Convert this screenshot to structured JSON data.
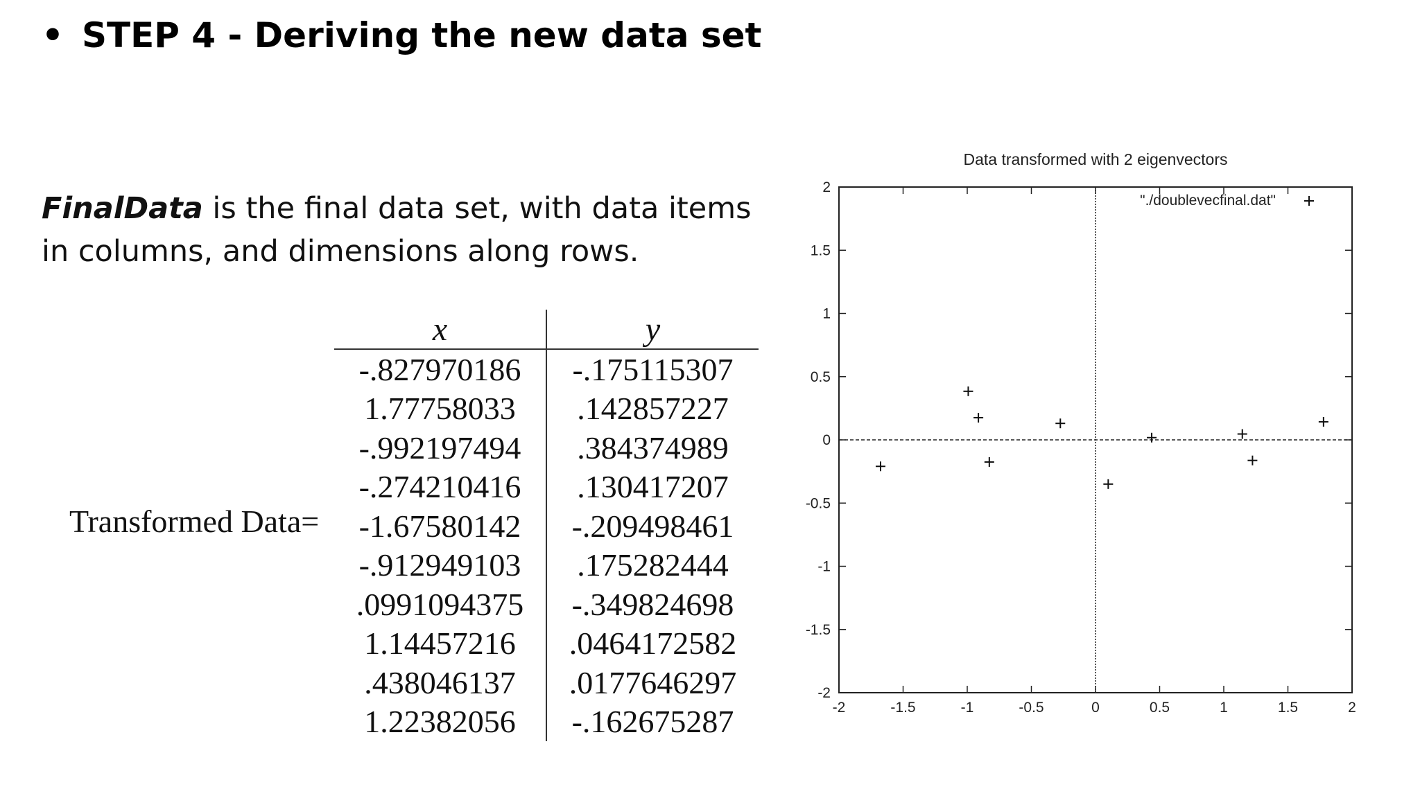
{
  "slide": {
    "bullet": "•",
    "heading": "STEP 4 - Deriving the new data set",
    "paragraph_term": "FinalData",
    "paragraph_rest": " is the final data set, with data items in columns, and dimensions along rows.",
    "table_label": "Transformed Data="
  },
  "table": {
    "columns": [
      "x",
      "y"
    ],
    "rows": [
      [
        "-.827970186",
        "-.175115307"
      ],
      [
        "1.77758033",
        ".142857227"
      ],
      [
        "-.992197494",
        ".384374989"
      ],
      [
        "-.274210416",
        ".130417207"
      ],
      [
        "-1.67580142",
        "-.209498461"
      ],
      [
        "-.912949103",
        ".175282444"
      ],
      [
        ".0991094375",
        "-.349824698"
      ],
      [
        "1.14457216",
        ".0464172582"
      ],
      [
        ".438046137",
        ".0177646297"
      ],
      [
        "1.22382056",
        "-.162675287"
      ]
    ]
  },
  "chart_data": {
    "type": "scatter",
    "title": "Data transformed with 2 eigenvectors",
    "xlim": [
      -2,
      2
    ],
    "ylim": [
      -2,
      2
    ],
    "xticks": [
      "-2",
      "-1.5",
      "-1",
      "-0.5",
      "0",
      "0.5",
      "1",
      "1.5",
      "2"
    ],
    "yticks": [
      "-2",
      "-1.5",
      "-1",
      "-0.5",
      "0",
      "0.5",
      "1",
      "1.5",
      "2"
    ],
    "xtick_values": [
      -2,
      -1.5,
      -1,
      -0.5,
      0,
      0.5,
      1,
      1.5,
      2
    ],
    "ytick_values": [
      -2,
      -1.5,
      -1,
      -0.5,
      0,
      0.5,
      1,
      1.5,
      2
    ],
    "legend_position": "top-right",
    "marker": "+",
    "zero_axes": true,
    "grid": false,
    "series": [
      {
        "name": "\"./doublevecfinal.dat\"",
        "x": [
          -0.827970186,
          1.77758033,
          -0.992197494,
          -0.274210416,
          -1.67580142,
          -0.912949103,
          0.0991094375,
          1.14457216,
          0.438046137,
          1.22382056
        ],
        "y": [
          -0.175115307,
          0.142857227,
          0.384374989,
          0.130417207,
          -0.209498461,
          0.175282444,
          -0.349824698,
          0.0464172582,
          0.0177646297,
          -0.162675287
        ]
      }
    ]
  }
}
